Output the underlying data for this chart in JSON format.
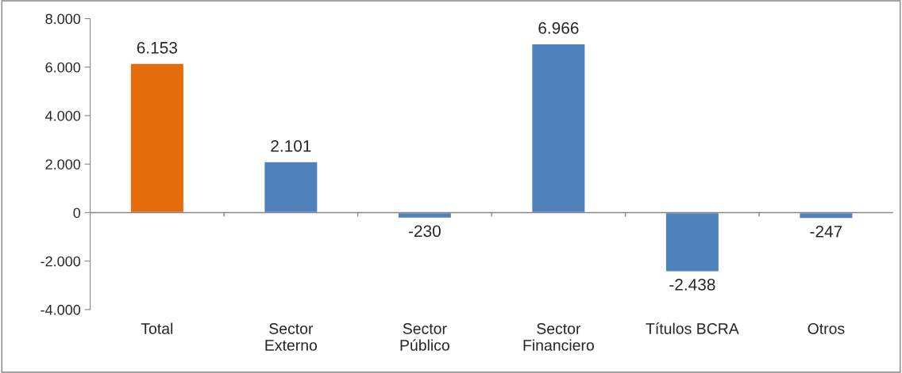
{
  "chart_data": {
    "type": "bar",
    "categories": [
      "Total",
      "Sector\nExterno",
      "Sector\nPúblico",
      "Sector\nFinanciero",
      "Títulos BCRA",
      "Otros"
    ],
    "values": [
      6153,
      2101,
      -230,
      6966,
      -2438,
      -247
    ],
    "colors": [
      "#e46c0a",
      "#4f81bd",
      "#4f81bd",
      "#4f81bd",
      "#4f81bd",
      "#4f81bd"
    ],
    "value_labels": [
      "6.153",
      "2.101",
      "-230",
      "6.966",
      "-2.438",
      "-247"
    ],
    "ylim": [
      -4000,
      8000
    ],
    "yticks": [
      {
        "value": -4000,
        "label": "-4.000"
      },
      {
        "value": -2000,
        "label": "-2.000"
      },
      {
        "value": 0,
        "label": "0"
      },
      {
        "value": 2000,
        "label": "2.000"
      },
      {
        "value": 4000,
        "label": "4.000"
      },
      {
        "value": 6000,
        "label": "6.000"
      },
      {
        "value": 8000,
        "label": "8.000"
      }
    ],
    "legend": false
  }
}
